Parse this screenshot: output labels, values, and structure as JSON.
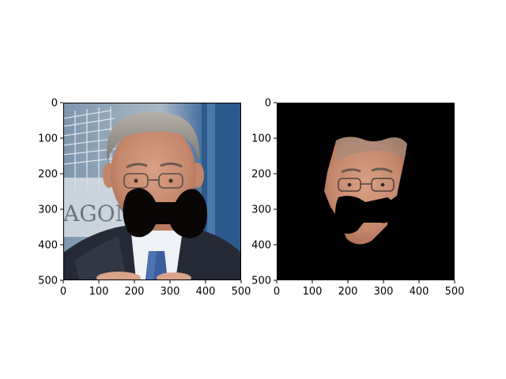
{
  "chart_data": [
    {
      "type": "image",
      "content": "photo of a man in a suit and tie in front of a building with a black bow-tie-shaped occlusion over the mouth and chin",
      "xlim": [
        0,
        500
      ],
      "ylim": [
        500,
        0
      ],
      "xticks": [
        0,
        100,
        200,
        300,
        400,
        500
      ],
      "yticks": [
        0,
        100,
        200,
        300,
        400,
        500
      ],
      "xtick_labels": [
        "0",
        "100",
        "200",
        "300",
        "400",
        "500"
      ],
      "ytick_labels": [
        "0",
        "100",
        "200",
        "300",
        "400",
        "500"
      ],
      "grid": false
    },
    {
      "type": "image",
      "content": "segmented face region of the same man on a black background, lower face partially occluded",
      "xlim": [
        0,
        500
      ],
      "ylim": [
        500,
        0
      ],
      "xticks": [
        0,
        100,
        200,
        300,
        400,
        500
      ],
      "yticks": [
        0,
        100,
        200,
        300,
        400,
        500
      ],
      "xtick_labels": [
        "0",
        "100",
        "200",
        "300",
        "400",
        "500"
      ],
      "ytick_labels": [
        "0",
        "100",
        "200",
        "300",
        "400",
        "500"
      ],
      "grid": false
    }
  ],
  "colors": {
    "occlusion": "#0a0606",
    "background_right": "#000000",
    "building_blue": "#6f8fb0",
    "suit": "#2a2d3a",
    "shirt": "#eceff4",
    "tie": "#3a5f9e",
    "skin": "#c98f73",
    "hair": "#9a9590"
  },
  "photo_text": "AGON"
}
